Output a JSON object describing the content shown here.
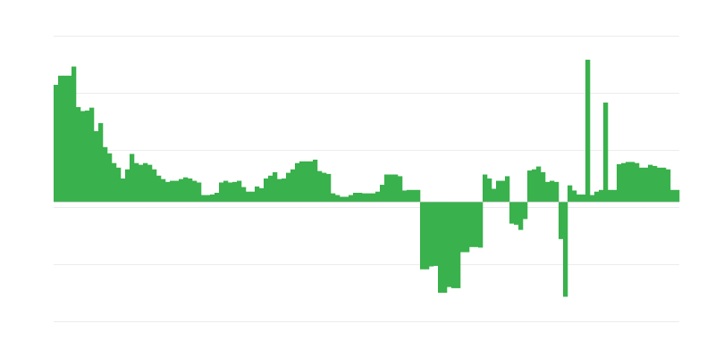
{
  "chart_data": {
    "type": "bar",
    "title": "",
    "xlabel": "",
    "ylabel": "",
    "grid": true,
    "legend": "none",
    "bar_color": "#39b14c",
    "gridline_color": "#ececec",
    "ylim": [
      -20.9,
      29.1
    ],
    "values": [
      20.5,
      22.1,
      22.1,
      22.1,
      23.7,
      16.6,
      15.9,
      16.0,
      16.5,
      12.4,
      13.8,
      9.6,
      8.5,
      6.8,
      6.0,
      4.1,
      5.7,
      8.4,
      6.8,
      6.5,
      6.8,
      6.5,
      5.7,
      4.6,
      4.0,
      3.5,
      3.7,
      3.7,
      4.0,
      4.3,
      4.1,
      3.7,
      3.4,
      1.2,
      1.2,
      1.3,
      1.6,
      3.4,
      3.7,
      3.4,
      3.5,
      3.7,
      2.6,
      1.8,
      1.8,
      2.7,
      2.4,
      4.1,
      4.6,
      5.2,
      4.0,
      4.1,
      5.1,
      5.7,
      6.8,
      7.1,
      7.1,
      7.1,
      7.4,
      5.4,
      5.1,
      4.9,
      1.5,
      1.2,
      0.9,
      0.9,
      1.2,
      1.6,
      1.6,
      1.5,
      1.5,
      1.5,
      1.8,
      3.0,
      4.8,
      4.8,
      4.8,
      4.5,
      2.0,
      2.1,
      2.1,
      2.1,
      -11.8,
      -11.8,
      -11.3,
      -11.2,
      -15.9,
      -15.9,
      -14.9,
      -15.1,
      -15.1,
      -8.8,
      -8.8,
      -7.9,
      -7.9,
      -8.0,
      4.8,
      4.1,
      2.3,
      3.7,
      3.7,
      4.5,
      -3.8,
      -4.0,
      -4.9,
      -3.0,
      5.5,
      5.7,
      6.2,
      5.2,
      3.5,
      3.7,
      3.5,
      -6.5,
      -16.6,
      2.9,
      2.0,
      1.3,
      1.3,
      24.9,
      1.2,
      1.8,
      2.1,
      17.4,
      2.1,
      2.1,
      6.6,
      6.8,
      7.0,
      7.0,
      6.8,
      6.0,
      6.0,
      6.5,
      6.3,
      6.0,
      6.0,
      5.7,
      2.1,
      2.1
    ]
  }
}
